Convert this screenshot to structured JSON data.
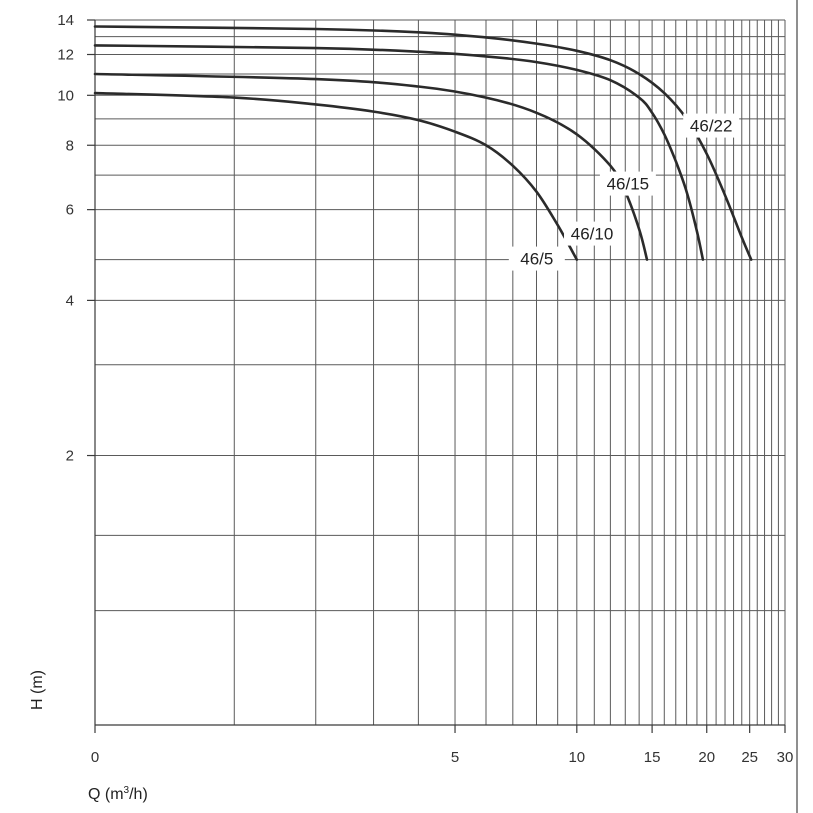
{
  "chart_data": {
    "type": "line",
    "xlabel": {
      "base": "Q (m",
      "sup": "3",
      "rest": "/h)"
    },
    "ylabel": "H (m)",
    "x_ticks": [
      0,
      5,
      10,
      15,
      20,
      25,
      30
    ],
    "y_ticks": [
      2,
      4,
      6,
      8,
      10,
      12,
      14
    ],
    "xlim": [
      0,
      30
    ],
    "ylim": [
      0.6,
      14
    ],
    "grid": true,
    "series": [
      {
        "name": "46/5",
        "x": [
          0,
          1,
          2,
          3,
          4,
          5,
          6,
          7,
          8,
          9,
          10
        ],
        "y": [
          10.1,
          9.9,
          9.6,
          9.3,
          8.95,
          8.5,
          8.0,
          7.3,
          6.5,
          5.6,
          4.8
        ]
      },
      {
        "name": "46/10",
        "x": [
          0,
          2,
          4,
          6,
          8,
          10,
          12,
          13,
          14,
          14.6
        ],
        "y": [
          11.0,
          10.75,
          10.4,
          9.9,
          9.25,
          8.4,
          7.3,
          6.5,
          5.5,
          4.8
        ]
      },
      {
        "name": "46/15",
        "x": [
          0,
          2,
          4,
          6,
          8,
          10,
          12,
          14,
          15,
          16,
          17,
          18,
          19,
          19.6
        ],
        "y": [
          12.5,
          12.35,
          12.15,
          11.9,
          11.6,
          11.2,
          10.7,
          9.9,
          9.25,
          8.4,
          7.45,
          6.5,
          5.45,
          4.8
        ]
      },
      {
        "name": "46/22",
        "x": [
          0,
          2,
          4,
          6,
          8,
          10,
          12,
          14,
          16,
          18,
          20,
          22,
          24,
          25.2
        ],
        "y": [
          13.6,
          13.45,
          13.25,
          12.95,
          12.6,
          12.2,
          11.7,
          11.0,
          10.1,
          9.0,
          7.7,
          6.4,
          5.3,
          4.8
        ]
      }
    ]
  }
}
